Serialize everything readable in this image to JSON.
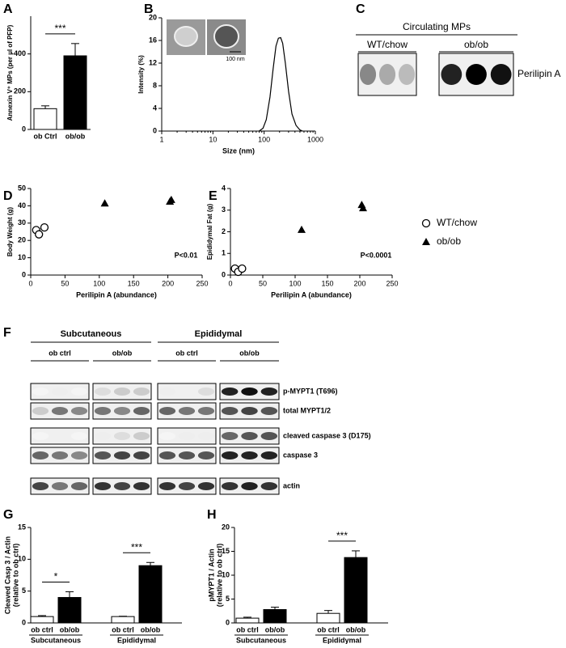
{
  "chart_data": [
    {
      "type": "bar",
      "letter": "A",
      "ylabel": "Annexin V⁺ MPs (per µl of PFP)",
      "categories": [
        "ob Ctrl",
        "ob/ob"
      ],
      "values": [
        110,
        390
      ],
      "errors": [
        15,
        65
      ],
      "colors": [
        "#ffffff",
        "#000000"
      ],
      "ylim": [
        0,
        600
      ],
      "yticks": [
        0,
        200,
        400
      ],
      "annotations": [
        "***"
      ]
    },
    {
      "type": "line",
      "letter": "B",
      "ylabel": "Intensity (%)",
      "xlabel": "Size (nm)",
      "scale_label": "100 nm",
      "log_x": true,
      "x": [
        80,
        95,
        110,
        130,
        150,
        170,
        190,
        210,
        230,
        260,
        300,
        350,
        420,
        500,
        560
      ],
      "values": [
        0,
        0.5,
        2,
        6,
        11,
        15,
        16.4,
        16.5,
        15.5,
        12,
        7,
        3,
        1,
        0.2,
        0
      ],
      "color": "#000000",
      "xlim": [
        1,
        1000
      ],
      "xticks": [
        1,
        10,
        100,
        1000
      ],
      "ylim": [
        0,
        20
      ],
      "yticks": [
        0,
        4,
        8,
        12,
        16,
        20
      ]
    },
    {
      "type": "scatter",
      "letter": "D",
      "ylabel": "Body  Weight (g)",
      "xlabel": "Perilipin A (abundance)",
      "annotation": "P<0.01",
      "legend": false,
      "series": [
        {
          "name": "WT/chow",
          "marker": "circle",
          "x": [
            8,
            12,
            20
          ],
          "values": [
            26,
            23.5,
            27.5
          ]
        },
        {
          "name": "ob/ob",
          "marker": "triangle",
          "x": [
            108,
            203,
            205
          ],
          "values": [
            41.5,
            42.5,
            43.5
          ]
        }
      ],
      "xlim": [
        0,
        250
      ],
      "xticks": [
        0,
        50,
        100,
        150,
        200,
        250
      ],
      "ylim": [
        0,
        50
      ],
      "yticks": [
        0,
        10,
        20,
        30,
        40,
        50
      ]
    },
    {
      "type": "scatter",
      "letter": "E",
      "ylabel": "Epididymal Fat (g)",
      "xlabel": "Perilipin A (abundance)",
      "annotation": "P<0.0001",
      "legend": true,
      "series": [
        {
          "name": "WT/chow",
          "marker": "circle",
          "x": [
            7,
            12,
            18
          ],
          "values": [
            0.3,
            0.15,
            0.3
          ]
        },
        {
          "name": "ob/ob",
          "marker": "triangle",
          "x": [
            110,
            203,
            205
          ],
          "values": [
            2.1,
            3.25,
            3.1
          ]
        }
      ],
      "xlim": [
        0,
        250
      ],
      "xticks": [
        0,
        50,
        100,
        150,
        200,
        250
      ],
      "ylim": [
        0,
        4
      ],
      "yticks": [
        0,
        1,
        2,
        3,
        4
      ]
    },
    {
      "type": "bar",
      "letter": "G",
      "ylabel": [
        "Cleaved Casp 3 / Actin",
        "(relative to ob ctrl)"
      ],
      "categories": [
        "ob ctrl",
        "ob/ob",
        "ob ctrl",
        "ob/ob"
      ],
      "groups": [
        "Subcutaneous",
        "Epididymal"
      ],
      "values": [
        1,
        4,
        1,
        9
      ],
      "errors": [
        0.15,
        0.9,
        0.05,
        0.5
      ],
      "colors": [
        "#ffffff",
        "#000000",
        "#ffffff",
        "#000000"
      ],
      "ylim": [
        0,
        15
      ],
      "yticks": [
        0,
        5,
        10,
        15
      ],
      "annotations": [
        "*",
        "***"
      ]
    },
    {
      "type": "bar",
      "letter": "H",
      "ylabel": [
        "pMYPT1 / Actin",
        "(relative to ob ctrl)"
      ],
      "categories": [
        "ob ctrl",
        "ob/ob",
        "ob ctrl",
        "ob/ob"
      ],
      "groups": [
        "Subcutaneous",
        "Epididymal"
      ],
      "values": [
        1,
        2.8,
        2,
        13.7
      ],
      "errors": [
        0.2,
        0.5,
        0.6,
        1.4
      ],
      "colors": [
        "#ffffff",
        "#000000",
        "#ffffff",
        "#000000"
      ],
      "ylim": [
        0,
        20
      ],
      "yticks": [
        0,
        5,
        10,
        15,
        20
      ],
      "annotations": [
        null,
        "***"
      ]
    }
  ],
  "blot_panels": [
    {
      "letter": "C",
      "title": "Circulating MPs",
      "groups": [
        "WT/chow",
        "ob/ob"
      ],
      "rows": [
        "Perilipin A"
      ]
    },
    {
      "letter": "F",
      "groups": [
        "Subcutaneous",
        "Epididymal"
      ],
      "subgroups": [
        "ob ctrl",
        "ob/ob",
        "ob ctrl",
        "ob/ob"
      ],
      "rows": [
        "p-MYPT1 (T696)",
        "total MYPT1/2",
        "cleaved caspase 3 (D175)",
        "caspase 3",
        "actin"
      ]
    }
  ]
}
